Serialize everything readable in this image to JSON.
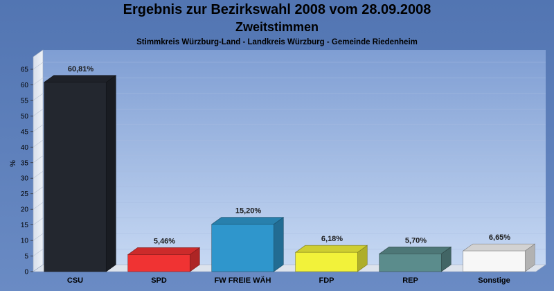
{
  "chart_data": {
    "type": "bar",
    "title": "Ergebnis zur Bezirkswahl 2008 vom 28.09.2008",
    "subtitle": "Zweitstimmen",
    "caption": "Stimmkreis Würzburg-Land - Landkreis Würzburg - Gemeinde Riedenheim",
    "ylabel": "%",
    "ylim": [
      0,
      69
    ],
    "yticks": [
      0,
      5,
      10,
      15,
      20,
      25,
      30,
      35,
      40,
      45,
      50,
      55,
      60,
      65
    ],
    "categories": [
      "CSU",
      "SPD",
      "FW FREIE WÄH",
      "FDP",
      "REP",
      "Sonstige"
    ],
    "values": [
      60.81,
      5.46,
      15.2,
      6.18,
      5.7,
      6.65
    ],
    "value_labels": [
      "60,81%",
      "5,46%",
      "15,20%",
      "6,18%",
      "5,70%",
      "6,65%"
    ],
    "colors": [
      "#23272f",
      "#f03333",
      "#2f96cc",
      "#f2f23a",
      "#5b8c8c",
      "#f7f7f7"
    ],
    "grid": true
  }
}
